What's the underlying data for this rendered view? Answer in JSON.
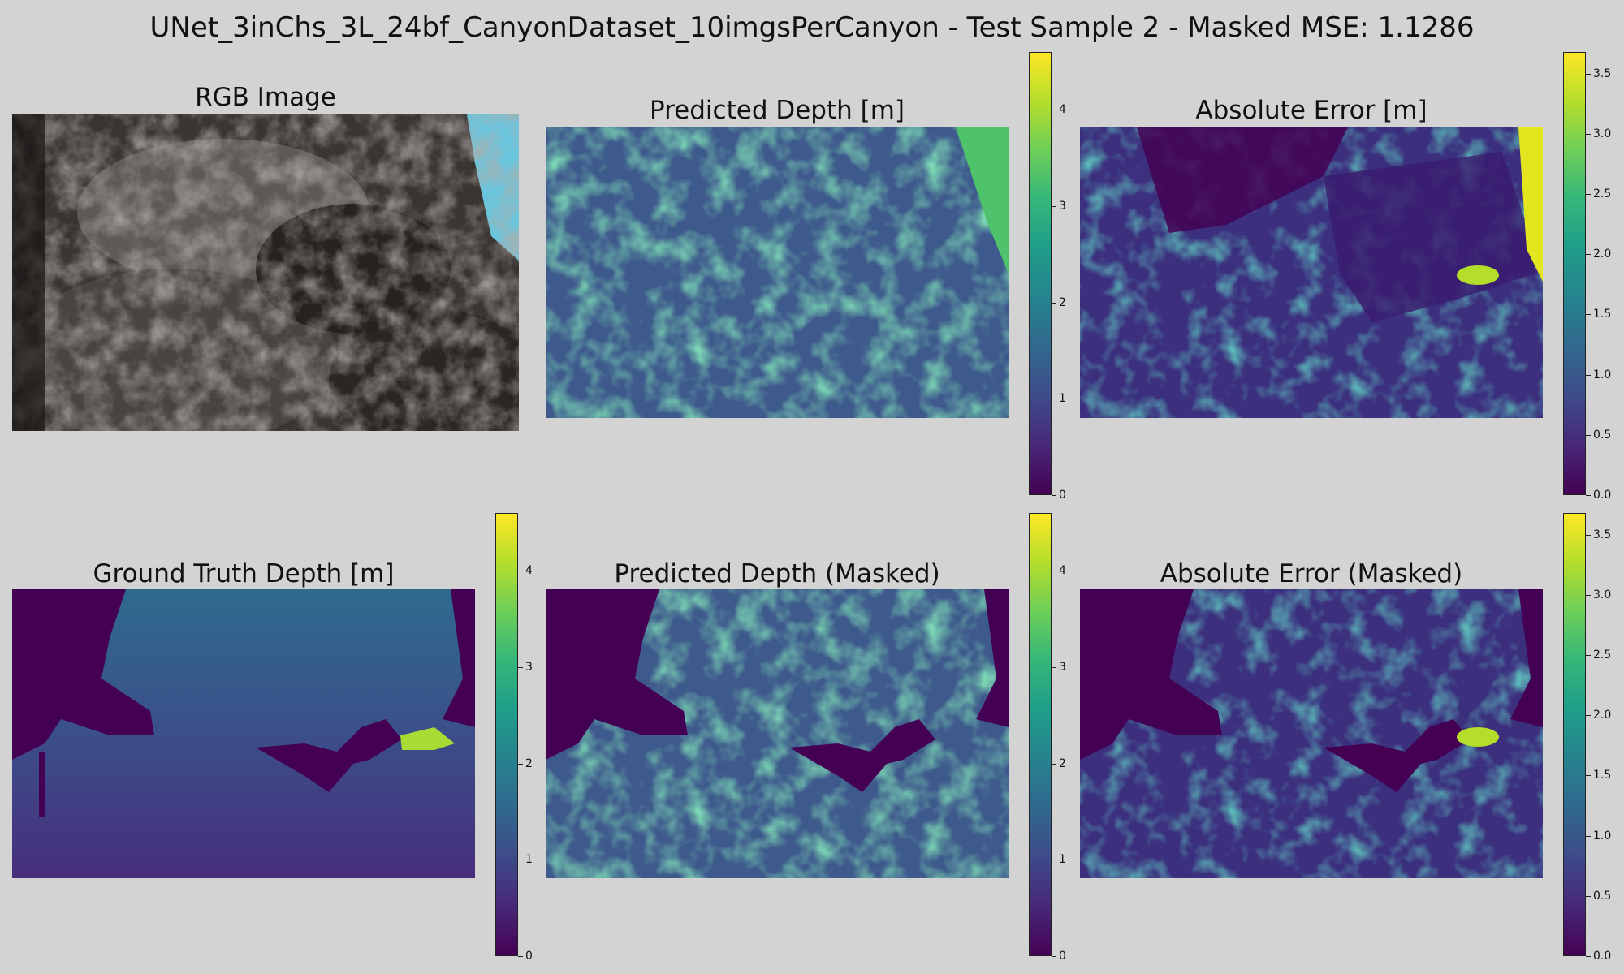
{
  "figure": {
    "title": "UNet_3inChs_3L_24bf_CanyonDataset_10imgsPerCanyon - Test Sample 2 - Masked MSE: 1.1286"
  },
  "colormap": {
    "name": "viridis",
    "stops": [
      "#440154",
      "#482878",
      "#3e4a89",
      "#31688e",
      "#26828e",
      "#1f9e89",
      "#35b779",
      "#6ece58",
      "#b5de2b",
      "#fde725"
    ],
    "mask_color": "#440154"
  },
  "panels": {
    "rgb": {
      "title": "RGB Image",
      "icon": "rock-canyon-photo"
    },
    "pred": {
      "title": "Predicted Depth [m]"
    },
    "abs_err": {
      "title": "Absolute Error [m]"
    },
    "gt": {
      "title": "Ground Truth Depth [m]"
    },
    "pred_masked": {
      "title": "Predicted Depth (Masked)"
    },
    "abs_err_masked": {
      "title": "Absolute Error (Masked)"
    }
  },
  "chart_data": [
    {
      "type": "heatmap",
      "title": "Predicted Depth [m]",
      "colorbar": {
        "vmin": 0,
        "vmax": 4.6,
        "ticks": [
          "0",
          "1",
          "2",
          "3",
          "4"
        ],
        "tick_values": [
          0,
          1,
          2,
          3,
          4
        ]
      }
    },
    {
      "type": "heatmap",
      "title": "Absolute Error [m]",
      "colorbar": {
        "vmin": 0,
        "vmax": 3.68,
        "ticks": [
          "0.0",
          "0.5",
          "1.0",
          "1.5",
          "2.0",
          "2.5",
          "3.0",
          "3.5"
        ],
        "tick_values": [
          0,
          0.5,
          1.0,
          1.5,
          2.0,
          2.5,
          3.0,
          3.5
        ]
      }
    },
    {
      "type": "heatmap",
      "title": "Ground Truth Depth [m]",
      "colorbar": {
        "vmin": 0,
        "vmax": 4.6,
        "ticks": [
          "0",
          "1",
          "2",
          "3",
          "4"
        ],
        "tick_values": [
          0,
          1,
          2,
          3,
          4
        ]
      }
    },
    {
      "type": "heatmap",
      "title": "Predicted Depth (Masked)",
      "colorbar": {
        "vmin": 0,
        "vmax": 4.6,
        "ticks": [
          "0",
          "1",
          "2",
          "3",
          "4"
        ],
        "tick_values": [
          0,
          1,
          2,
          3,
          4
        ]
      }
    },
    {
      "type": "heatmap",
      "title": "Absolute Error (Masked)",
      "colorbar": {
        "vmin": 0,
        "vmax": 3.68,
        "ticks": [
          "0.0",
          "0.5",
          "1.0",
          "1.5",
          "2.0",
          "2.5",
          "3.0",
          "3.5"
        ],
        "tick_values": [
          0,
          0.5,
          1.0,
          1.5,
          2.0,
          2.5,
          3.0,
          3.5
        ]
      }
    }
  ]
}
